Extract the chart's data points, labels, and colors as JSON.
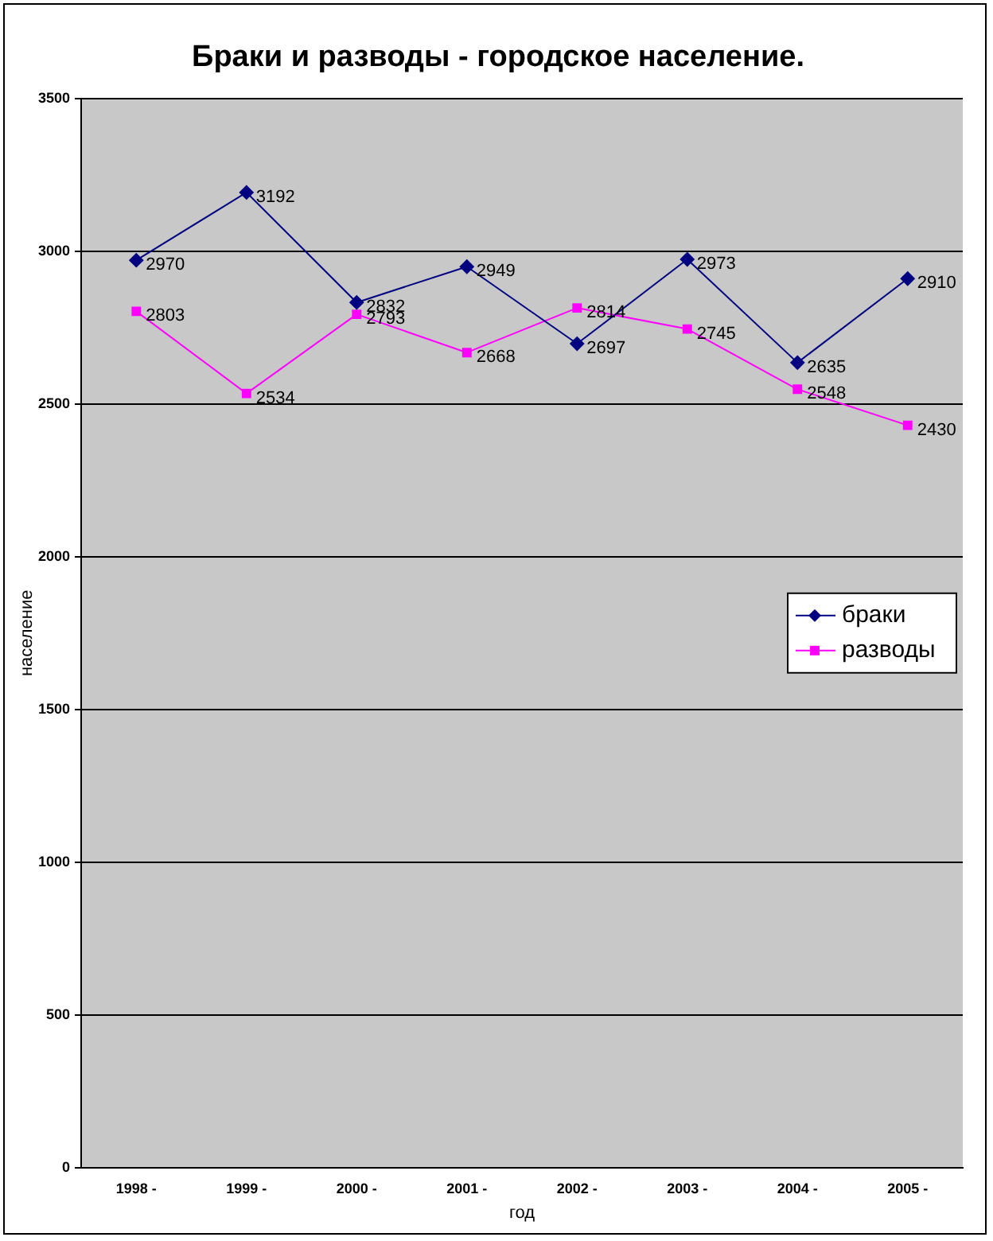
{
  "chart_data": {
    "type": "line",
    "title": "Браки и разводы - городское население.",
    "xlabel": "год",
    "ylabel": "население",
    "categories": [
      "1998 -",
      "1999 -",
      "2000 -",
      "2001 -",
      "2002 -",
      "2003 -",
      "2004 -",
      "2005 -"
    ],
    "series": [
      {
        "name": "браки",
        "color": "#000080",
        "marker": "diamond",
        "values": [
          2970,
          3192,
          2832,
          2949,
          2697,
          2973,
          2635,
          2910
        ]
      },
      {
        "name": "разводы",
        "color": "#ff00ff",
        "marker": "square",
        "values": [
          2803,
          2534,
          2793,
          2668,
          2814,
          2745,
          2548,
          2430
        ]
      }
    ],
    "ylim": [
      0,
      3500
    ],
    "yticks": [
      0,
      500,
      1000,
      1500,
      2000,
      2500,
      3000,
      3500
    ],
    "grid": "y",
    "legend": "right",
    "data_labels": true,
    "line_style": "solid"
  }
}
